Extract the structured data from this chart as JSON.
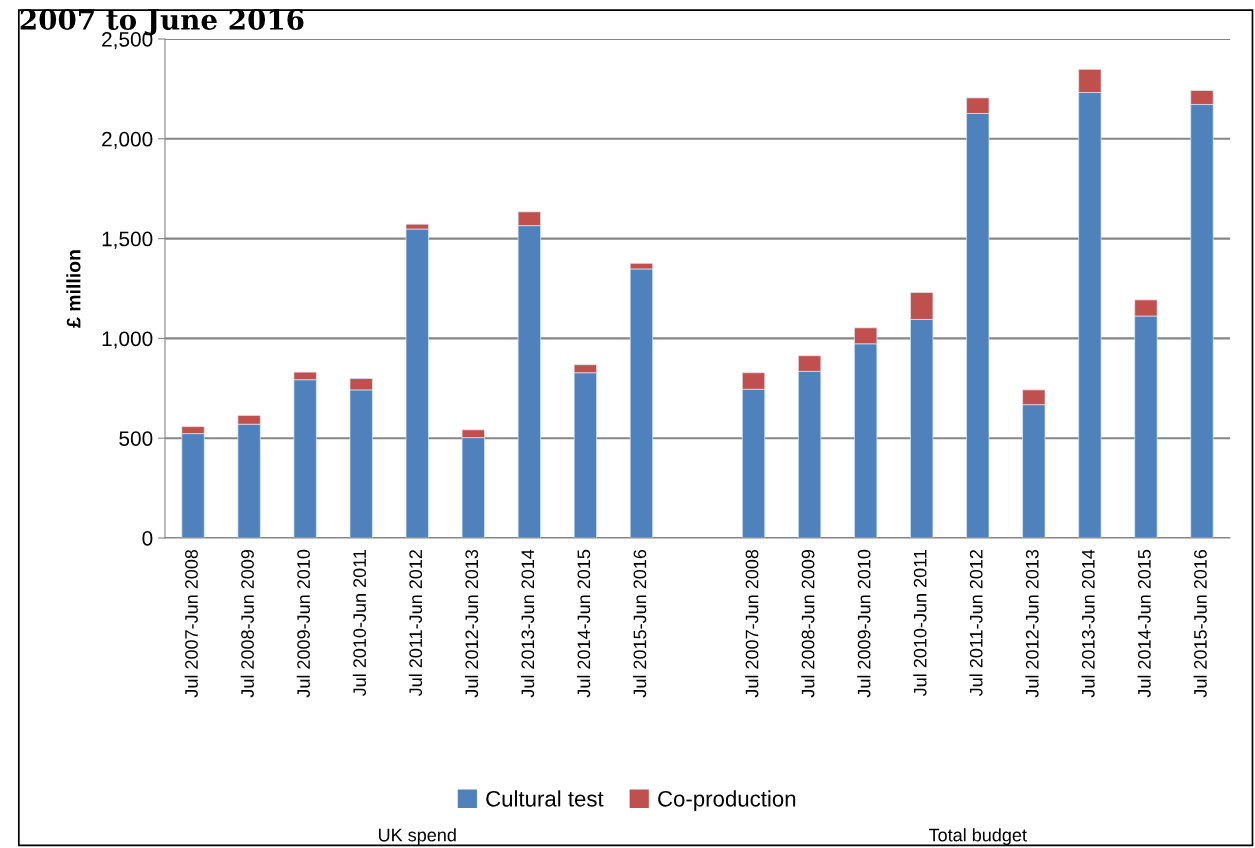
{
  "chart_data": {
    "type": "bar",
    "stacked": true,
    "title": "2007 to June 2016",
    "ylabel": "£ million",
    "categories": [
      "Jul 2007-Jun 2008",
      "Jul 2008-Jun 2009",
      "Jul 2009-Jun 2010",
      "Jul 2010-Jun 2011",
      "Jul 2011-Jun 2012",
      "Jul 2012-Jun 2013",
      "Jul 2013-Jun 2014",
      "Jul 2014-Jun 2015",
      "Jul 2015-Jun 2016",
      null,
      "Jul 2007-Jun 2008",
      "Jul 2008-Jun 2009",
      "Jul 2009-Jun 2010",
      "Jul 2010-Jun 2011",
      "Jul 2011-Jun 2012",
      "Jul 2012-Jun 2013",
      "Jul 2013-Jun 2014",
      "Jul 2014-Jun 2015",
      "Jul 2015-Jun 2016"
    ],
    "series": [
      {
        "name": "Cultural test",
        "color": "#4f81bd",
        "values": [
          523,
          570,
          793,
          742,
          1548,
          503,
          1565,
          828,
          1348,
          null,
          745,
          835,
          973,
          1095,
          2127,
          668,
          2232,
          1112,
          2172
        ]
      },
      {
        "name": "Co-production",
        "color": "#c0504d",
        "values": [
          35,
          44,
          38,
          57,
          24,
          39,
          69,
          40,
          28,
          null,
          83,
          78,
          80,
          135,
          78,
          74,
          116,
          81,
          70
        ]
      }
    ],
    "ylim": [
      0,
      2500
    ],
    "yticks": [
      0,
      500,
      {
        "value": 1000,
        "label": "1,000"
      },
      {
        "value": 1500,
        "label": "1,500"
      },
      {
        "value": 2000,
        "label": "2,000"
      },
      {
        "value": 2500,
        "label": "2,500"
      }
    ],
    "grid": "y",
    "legend": "bottom",
    "annotations": [
      "UK spend",
      "Total budget"
    ]
  }
}
